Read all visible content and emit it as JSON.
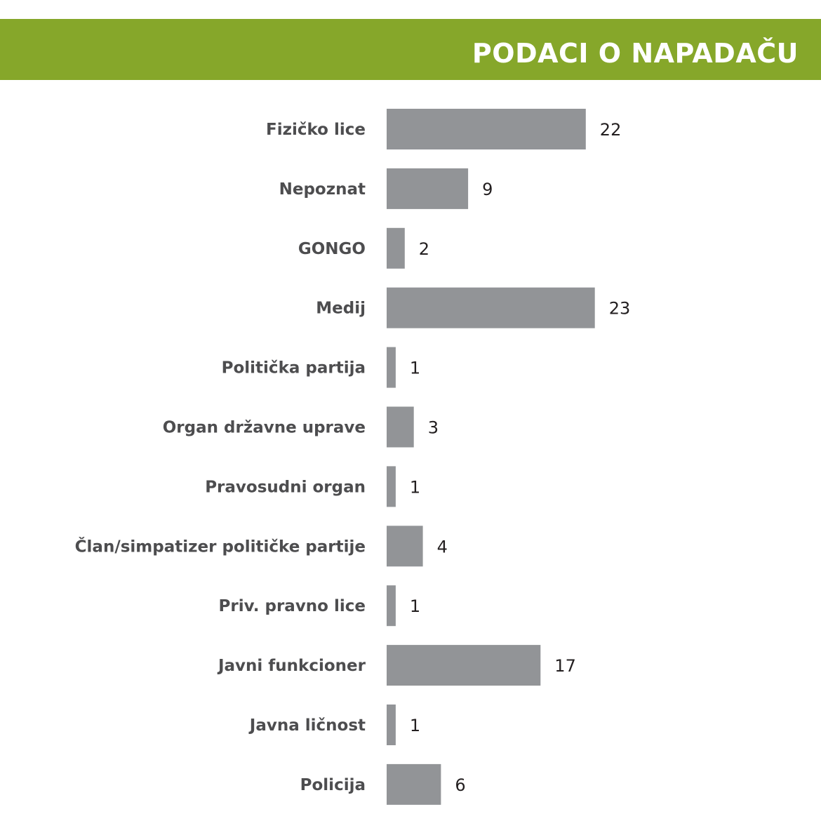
{
  "header": {
    "title": "PODACI O NAPADAČU",
    "band_color": "#86a72a"
  },
  "chart_data": {
    "type": "bar",
    "orientation": "horizontal",
    "categories": [
      "Fizičko lice",
      "Nepoznat",
      "GONGO",
      "Medij",
      "Politička partija",
      "Organ državne uprave",
      "Pravosudni organ",
      "Član/simpatizer političke partije",
      "Priv. pravno lice",
      "Javni funkcioner",
      "Javna ličnost",
      "Policija"
    ],
    "values": [
      22,
      9,
      2,
      23,
      1,
      3,
      1,
      4,
      1,
      17,
      1,
      6
    ],
    "bar_color": "#929497",
    "grid": false,
    "legend": "none",
    "data_labels": true
  }
}
